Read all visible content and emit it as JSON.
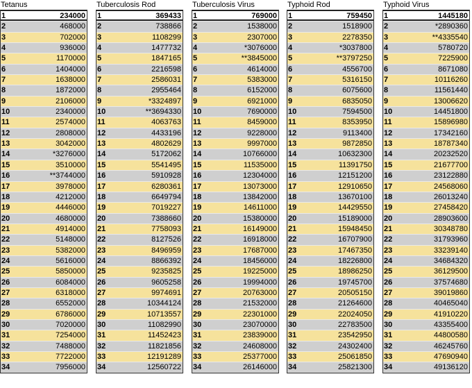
{
  "columns": [
    {
      "title": "Tetanus",
      "rows": [
        [
          "1",
          "234000"
        ],
        [
          "2",
          "468000"
        ],
        [
          "3",
          "702000"
        ],
        [
          "4",
          "936000"
        ],
        [
          "5",
          "1170000"
        ],
        [
          "6",
          "1404000"
        ],
        [
          "7",
          "1638000"
        ],
        [
          "8",
          "1872000"
        ],
        [
          "9",
          "2106000"
        ],
        [
          "10",
          "2340000"
        ],
        [
          "11",
          "2574000"
        ],
        [
          "12",
          "2808000"
        ],
        [
          "13",
          "3042000"
        ],
        [
          "14",
          "*3276000"
        ],
        [
          "15",
          "3510000"
        ],
        [
          "16",
          "**3744000"
        ],
        [
          "17",
          "3978000"
        ],
        [
          "18",
          "4212000"
        ],
        [
          "19",
          "4446000"
        ],
        [
          "20",
          "4680000"
        ],
        [
          "21",
          "4914000"
        ],
        [
          "22",
          "5148000"
        ],
        [
          "23",
          "5382000"
        ],
        [
          "24",
          "5616000"
        ],
        [
          "25",
          "5850000"
        ],
        [
          "26",
          "6084000"
        ],
        [
          "27",
          "6318000"
        ],
        [
          "28",
          "6552000"
        ],
        [
          "29",
          "6786000"
        ],
        [
          "30",
          "7020000"
        ],
        [
          "31",
          "7254000"
        ],
        [
          "32",
          "7488000"
        ],
        [
          "33",
          "7722000"
        ],
        [
          "34",
          "7956000"
        ]
      ]
    },
    {
      "title": "Tuberculosis Rod",
      "rows": [
        [
          "1",
          "369433"
        ],
        [
          "2",
          "738866"
        ],
        [
          "3",
          "1108299"
        ],
        [
          "4",
          "1477732"
        ],
        [
          "5",
          "1847165"
        ],
        [
          "6",
          "2216598"
        ],
        [
          "7",
          "2586031"
        ],
        [
          "8",
          "2955464"
        ],
        [
          "9",
          "*3324897"
        ],
        [
          "10",
          "**3694330"
        ],
        [
          "11",
          "4063763"
        ],
        [
          "12",
          "4433196"
        ],
        [
          "13",
          "4802629"
        ],
        [
          "14",
          "5172062"
        ],
        [
          "15",
          "5541495"
        ],
        [
          "16",
          "5910928"
        ],
        [
          "17",
          "6280361"
        ],
        [
          "18",
          "6649794"
        ],
        [
          "19",
          "7019227"
        ],
        [
          "20",
          "7388660"
        ],
        [
          "21",
          "7758093"
        ],
        [
          "22",
          "8127526"
        ],
        [
          "23",
          "8496959"
        ],
        [
          "24",
          "8866392"
        ],
        [
          "25",
          "9235825"
        ],
        [
          "26",
          "9605258"
        ],
        [
          "27",
          "9974691"
        ],
        [
          "28",
          "10344124"
        ],
        [
          "29",
          "10713557"
        ],
        [
          "30",
          "11082990"
        ],
        [
          "31",
          "11452423"
        ],
        [
          "32",
          "11821856"
        ],
        [
          "33",
          "12191289"
        ],
        [
          "34",
          "12560722"
        ]
      ]
    },
    {
      "title": "Tuberculosis Virus",
      "rows": [
        [
          "1",
          "769000"
        ],
        [
          "2",
          "1538000"
        ],
        [
          "3",
          "2307000"
        ],
        [
          "4",
          "*3076000"
        ],
        [
          "5",
          "**3845000"
        ],
        [
          "6",
          "4614000"
        ],
        [
          "7",
          "5383000"
        ],
        [
          "8",
          "6152000"
        ],
        [
          "9",
          "6921000"
        ],
        [
          "10",
          "7690000"
        ],
        [
          "11",
          "8459000"
        ],
        [
          "12",
          "9228000"
        ],
        [
          "13",
          "9997000"
        ],
        [
          "14",
          "10766000"
        ],
        [
          "15",
          "11535000"
        ],
        [
          "16",
          "12304000"
        ],
        [
          "17",
          "13073000"
        ],
        [
          "18",
          "13842000"
        ],
        [
          "19",
          "14611000"
        ],
        [
          "20",
          "15380000"
        ],
        [
          "21",
          "16149000"
        ],
        [
          "22",
          "16918000"
        ],
        [
          "23",
          "17687000"
        ],
        [
          "24",
          "18456000"
        ],
        [
          "25",
          "19225000"
        ],
        [
          "26",
          "19994000"
        ],
        [
          "27",
          "20763000"
        ],
        [
          "28",
          "21532000"
        ],
        [
          "29",
          "22301000"
        ],
        [
          "30",
          "23070000"
        ],
        [
          "31",
          "23839000"
        ],
        [
          "32",
          "24608000"
        ],
        [
          "33",
          "25377000"
        ],
        [
          "34",
          "26146000"
        ]
      ]
    },
    {
      "title": "Typhoid Rod",
      "rows": [
        [
          "1",
          "759450"
        ],
        [
          "2",
          "1518900"
        ],
        [
          "3",
          "2278350"
        ],
        [
          "4",
          "*3037800"
        ],
        [
          "5",
          "**3797250"
        ],
        [
          "6",
          "4556700"
        ],
        [
          "7",
          "5316150"
        ],
        [
          "8",
          "6075600"
        ],
        [
          "9",
          "6835050"
        ],
        [
          "10",
          "7594500"
        ],
        [
          "11",
          "8353950"
        ],
        [
          "12",
          "9113400"
        ],
        [
          "13",
          "9872850"
        ],
        [
          "14",
          "10632300"
        ],
        [
          "15",
          "11391750"
        ],
        [
          "16",
          "12151200"
        ],
        [
          "17",
          "12910650"
        ],
        [
          "18",
          "13670100"
        ],
        [
          "19",
          "14429550"
        ],
        [
          "20",
          "15189000"
        ],
        [
          "21",
          "15948450"
        ],
        [
          "22",
          "16707900"
        ],
        [
          "23",
          "17467350"
        ],
        [
          "24",
          "18226800"
        ],
        [
          "25",
          "18986250"
        ],
        [
          "26",
          "19745700"
        ],
        [
          "27",
          "20505150"
        ],
        [
          "28",
          "21264600"
        ],
        [
          "29",
          "22024050"
        ],
        [
          "30",
          "22783500"
        ],
        [
          "31",
          "23542950"
        ],
        [
          "32",
          "24302400"
        ],
        [
          "33",
          "25061850"
        ],
        [
          "34",
          "25821300"
        ]
      ]
    },
    {
      "title": "Typhoid Virus",
      "rows": [
        [
          "1",
          "1445180"
        ],
        [
          "2",
          "*2890360"
        ],
        [
          "3",
          "**4335540"
        ],
        [
          "4",
          "5780720"
        ],
        [
          "5",
          "7225900"
        ],
        [
          "6",
          "8671080"
        ],
        [
          "7",
          "10116260"
        ],
        [
          "8",
          "11561440"
        ],
        [
          "9",
          "13006620"
        ],
        [
          "10",
          "14451800"
        ],
        [
          "11",
          "15896980"
        ],
        [
          "12",
          "17342160"
        ],
        [
          "13",
          "18787340"
        ],
        [
          "14",
          "20232520"
        ],
        [
          "15",
          "21677700"
        ],
        [
          "16",
          "23122880"
        ],
        [
          "17",
          "24568060"
        ],
        [
          "18",
          "26013240"
        ],
        [
          "19",
          "27458420"
        ],
        [
          "20",
          "28903600"
        ],
        [
          "21",
          "30348780"
        ],
        [
          "22",
          "31793960"
        ],
        [
          "23",
          "33239140"
        ],
        [
          "24",
          "34684320"
        ],
        [
          "25",
          "36129500"
        ],
        [
          "26",
          "37574680"
        ],
        [
          "27",
          "39019860"
        ],
        [
          "28",
          "40465040"
        ],
        [
          "29",
          "41910220"
        ],
        [
          "30",
          "43355400"
        ],
        [
          "31",
          "44800580"
        ],
        [
          "32",
          "46245760"
        ],
        [
          "33",
          "47690940"
        ],
        [
          "34",
          "49136120"
        ]
      ]
    }
  ],
  "colors": {
    "row_yellow": "#f6e29c",
    "row_gray": "#cfcfcf",
    "row_first": "#ffffff"
  }
}
